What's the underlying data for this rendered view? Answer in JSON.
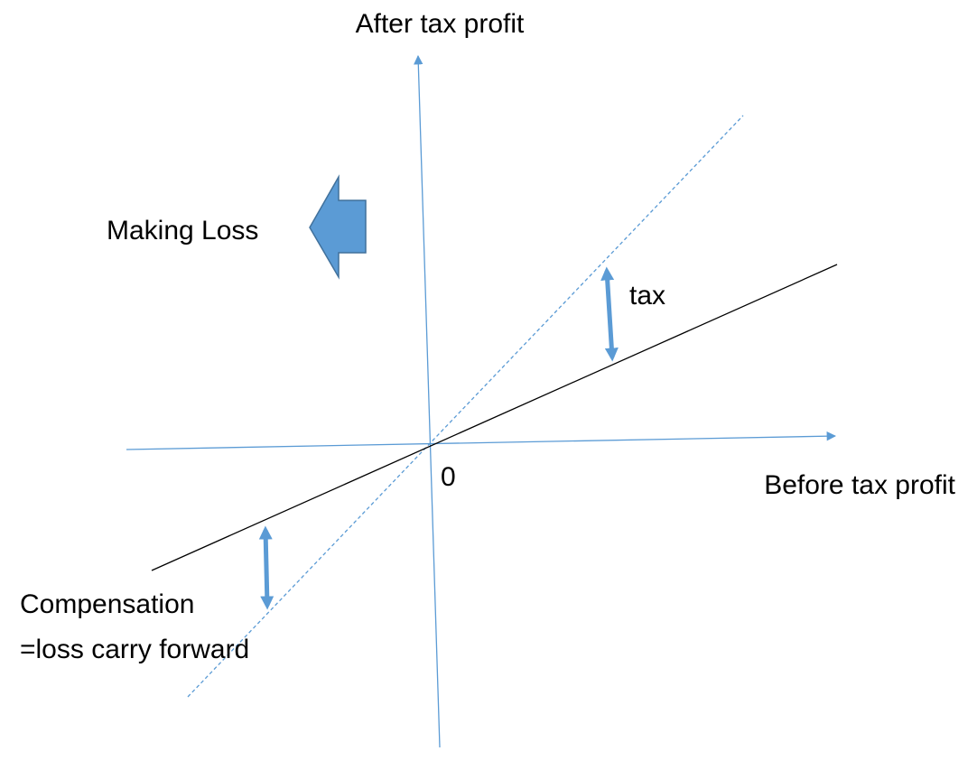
{
  "y_axis": {
    "label": "After tax profit"
  },
  "x_axis": {
    "label": "Before tax profit"
  },
  "origin": {
    "label": "0"
  },
  "loss_arrow": {
    "label": "Making Loss"
  },
  "tax_arrow": {
    "label": "tax"
  },
  "compensation_arrow": {
    "label": "Compensation",
    "sublabel": "=loss carry forward"
  }
}
